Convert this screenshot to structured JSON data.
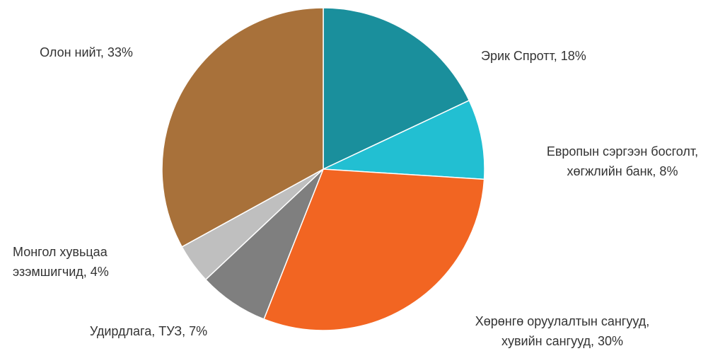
{
  "chart_data": {
    "type": "pie",
    "values": [
      18,
      8,
      30,
      7,
      4,
      33
    ],
    "value_labels": [
      [
        "Эрик Спротт, 18%"
      ],
      [
        "Европын сэргээн босголт,",
        "хөгжлийн банк, 8%"
      ],
      [
        "Хөрөнгө оруулалтын сангууд,",
        "хувийн сангууд, 30%"
      ],
      [
        "Удирдлага, ТУЗ, 7%"
      ],
      [
        "Монгол хувьцаа",
        "эзэмшигчид, 4%"
      ],
      [
        "Олон нийт, 33%"
      ]
    ],
    "colors": [
      "#1a8f9c",
      "#22bfd2",
      "#f26522",
      "#7f7f7f",
      "#bfbfbf",
      "#a8713a"
    ]
  }
}
